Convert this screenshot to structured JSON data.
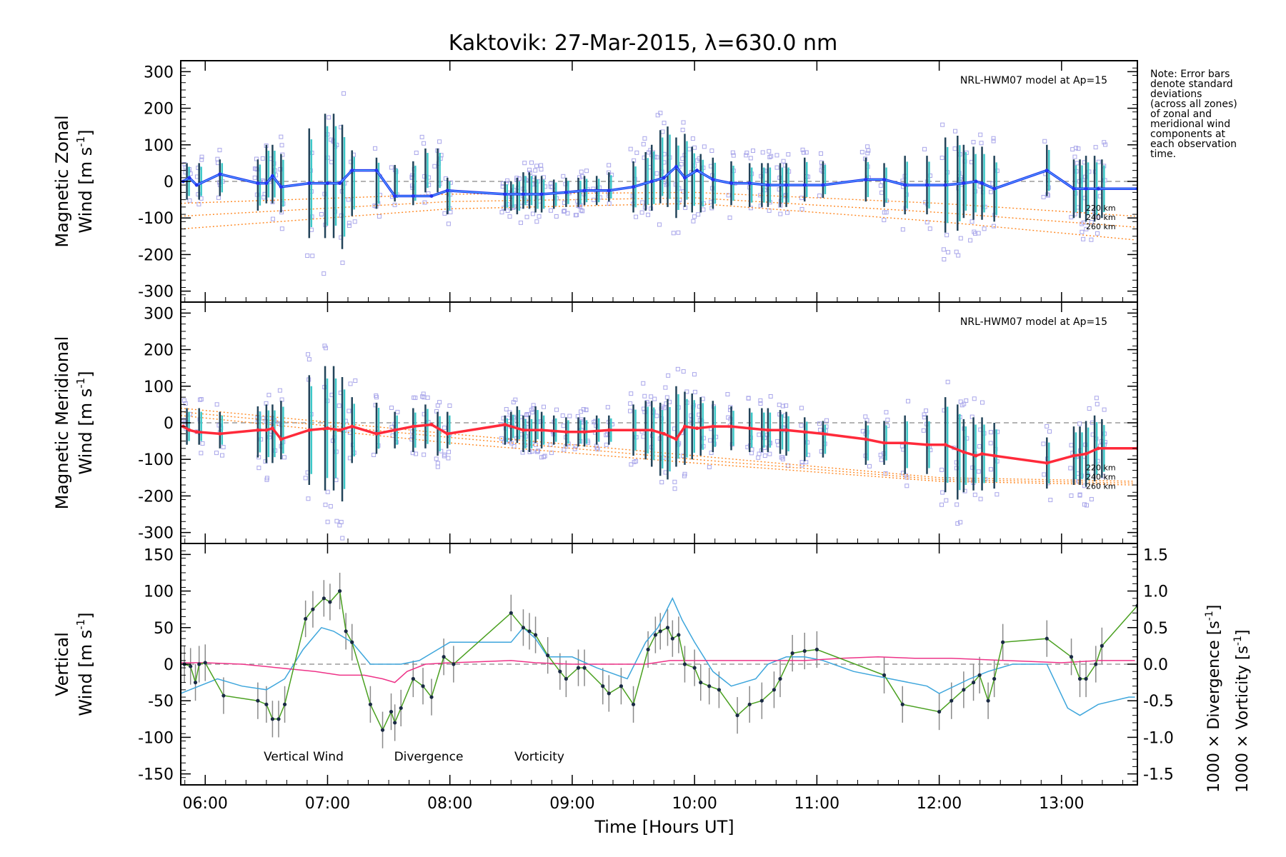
{
  "chart_data": {
    "type": "line",
    "title": "Kaktovik: 27-Mar-2015, λ=630.0 nm",
    "note_lines": [
      "Note: Error bars",
      "denote standard",
      "deviations",
      "(across all zones)",
      "of zonal and",
      "meridional wind",
      "components at",
      "each observation",
      "time."
    ],
    "xlabel": "Time [Hours UT]",
    "xlim": [
      5.8,
      13.62
    ],
    "xticks": [
      6,
      7,
      8,
      9,
      10,
      11,
      12,
      13
    ],
    "xtick_labels": [
      "06:00",
      "07:00",
      "08:00",
      "09:00",
      "10:00",
      "11:00",
      "12:00",
      "13:00"
    ],
    "colors": {
      "zonal": "#2233ee",
      "zonal_light": "#55aaff",
      "meridional": "#ff2a3a",
      "vertical": "#4aa020",
      "divergence": "#3ea6dc",
      "vorticity": "#ee3388",
      "model": "#ff8822",
      "scatter": "#a9a6ea",
      "errorbar": "#23445a",
      "vert_err": "#8a8a8a"
    },
    "panels": [
      {
        "name": "zonal",
        "ylabel_line1": "Magnetic Zonal",
        "ylabel_line2": "Wind [m s",
        "ylabel_sup": "-1",
        "ylabel_end": "]",
        "ylim": [
          -330,
          330
        ],
        "yticks": [
          -300,
          -200,
          -100,
          0,
          100,
          200,
          300
        ],
        "ytick_labels": [
          "-300",
          "-200",
          "-100",
          "0",
          "100",
          "200",
          "300"
        ],
        "model_label": "NRL-HWM07 model at Ap=15",
        "model_alt_labels": [
          "220 km",
          "240 km",
          "260 km"
        ],
        "model_lines": [
          {
            "x": [
              5.8,
              8.0,
              10.0,
              12.0,
              13.6
            ],
            "y": [
              -60,
              -35,
              -30,
              -60,
              -95
            ]
          },
          {
            "x": [
              5.8,
              8.0,
              10.0,
              12.0,
              13.6
            ],
            "y": [
              -95,
              -55,
              -45,
              -85,
              -125
            ]
          },
          {
            "x": [
              5.8,
              8.0,
              10.0,
              12.0,
              13.6
            ],
            "y": [
              -130,
              -75,
              -60,
              -110,
              -160
            ]
          }
        ],
        "series": {
          "x": [
            5.82,
            5.87,
            5.93,
            6.12,
            6.43,
            6.5,
            6.55,
            6.62,
            6.85,
            7.0,
            7.1,
            7.2,
            7.4,
            7.55,
            7.7,
            7.85,
            7.98,
            8.45,
            8.6,
            8.75,
            8.95,
            9.1,
            9.3,
            9.5,
            9.65,
            9.75,
            9.85,
            9.92,
            10.02,
            10.15,
            10.3,
            10.45,
            10.6,
            10.75,
            10.9,
            11.05,
            11.4,
            11.55,
            11.72,
            11.9,
            12.05,
            12.2,
            12.3,
            12.35,
            12.45,
            12.88,
            13.1,
            13.2,
            13.3,
            13.62
          ],
          "y": [
            0,
            10,
            -10,
            20,
            -5,
            -5,
            15,
            -15,
            -5,
            -5,
            -5,
            30,
            30,
            -40,
            -40,
            -40,
            -25,
            -35,
            -35,
            -35,
            -30,
            -25,
            -25,
            -15,
            0,
            10,
            40,
            10,
            30,
            5,
            -5,
            -5,
            -10,
            -10,
            -10,
            -10,
            5,
            5,
            -10,
            -10,
            -10,
            -5,
            0,
            -5,
            -20,
            30,
            -20,
            -20,
            -20,
            -20
          ]
        },
        "errbar_x": [
          5.85,
          5.95,
          6.12,
          6.43,
          6.5,
          6.55,
          6.62,
          6.85,
          6.98,
          7.05,
          7.12,
          7.2,
          7.4,
          7.55,
          7.7,
          7.8,
          7.9,
          7.98,
          8.45,
          8.5,
          8.55,
          8.6,
          8.65,
          8.7,
          8.75,
          8.85,
          8.95,
          9.05,
          9.1,
          9.2,
          9.3,
          9.5,
          9.6,
          9.65,
          9.72,
          9.78,
          9.85,
          9.92,
          9.98,
          10.05,
          10.15,
          10.3,
          10.45,
          10.55,
          10.6,
          10.7,
          10.75,
          10.9,
          11.05,
          11.4,
          11.55,
          11.72,
          11.9,
          12.05,
          12.15,
          12.2,
          12.28,
          12.35,
          12.45,
          12.88,
          13.1,
          13.15,
          13.2,
          13.27,
          13.33
        ],
        "errbar_half": [
          50,
          50,
          50,
          70,
          80,
          80,
          80,
          150,
          170,
          170,
          170,
          90,
          70,
          50,
          60,
          60,
          60,
          50,
          40,
          40,
          50,
          50,
          50,
          50,
          50,
          40,
          40,
          40,
          40,
          40,
          40,
          70,
          80,
          90,
          100,
          110,
          110,
          100,
          90,
          80,
          70,
          60,
          60,
          60,
          60,
          60,
          60,
          60,
          50,
          60,
          60,
          80,
          80,
          130,
          130,
          100,
          100,
          100,
          90,
          70,
          80,
          80,
          90,
          90,
          80
        ]
      },
      {
        "name": "meridional",
        "ylabel_line1": "Magnetic Meridional",
        "ylabel_line2": "Wind [m s",
        "ylabel_sup": "-1",
        "ylabel_end": "]",
        "ylim": [
          -330,
          330
        ],
        "yticks": [
          -300,
          -200,
          -100,
          0,
          100,
          200,
          300
        ],
        "ytick_labels": [
          "-300",
          "-200",
          "-100",
          "0",
          "100",
          "200",
          "300"
        ],
        "model_label": "NRL-HWM07 model at Ap=15",
        "model_alt_labels": [
          "220 km",
          "240 km",
          "260 km"
        ],
        "model_lines": [
          {
            "x": [
              5.8,
              8.0,
              10.0,
              12.0,
              13.6
            ],
            "y": [
              40,
              -30,
              -90,
              -150,
              -160
            ]
          },
          {
            "x": [
              5.8,
              8.0,
              10.0,
              12.0,
              13.6
            ],
            "y": [
              30,
              -40,
              -100,
              -155,
              -165
            ]
          },
          {
            "x": [
              5.8,
              8.0,
              10.0,
              12.0,
              13.6
            ],
            "y": [
              20,
              -55,
              -110,
              -160,
              -170
            ]
          }
        ],
        "series": {
          "x": [
            5.82,
            5.87,
            5.93,
            6.12,
            6.43,
            6.5,
            6.55,
            6.62,
            6.85,
            7.0,
            7.1,
            7.2,
            7.4,
            7.55,
            7.7,
            7.85,
            7.98,
            8.45,
            8.6,
            8.75,
            8.95,
            9.1,
            9.3,
            9.5,
            9.65,
            9.75,
            9.85,
            9.92,
            10.02,
            10.15,
            10.3,
            10.45,
            10.6,
            10.75,
            10.9,
            11.05,
            11.4,
            11.55,
            11.72,
            11.9,
            12.05,
            12.2,
            12.3,
            12.35,
            12.45,
            12.88,
            13.1,
            13.2,
            13.3,
            13.62
          ],
          "y": [
            -10,
            -20,
            -25,
            -30,
            -20,
            -20,
            -15,
            -45,
            -20,
            -15,
            -20,
            -10,
            -30,
            -20,
            -10,
            -5,
            -30,
            -5,
            -20,
            -20,
            -25,
            -25,
            -20,
            -20,
            -20,
            -30,
            -45,
            -10,
            -15,
            -10,
            -10,
            -15,
            -20,
            -20,
            -25,
            -30,
            -45,
            -55,
            -55,
            -60,
            -60,
            -80,
            -90,
            -85,
            -90,
            -110,
            -90,
            -85,
            -70,
            -70
          ]
        },
        "errbar_x": [
          5.85,
          5.95,
          6.12,
          6.43,
          6.5,
          6.55,
          6.62,
          6.85,
          6.98,
          7.05,
          7.12,
          7.2,
          7.4,
          7.55,
          7.7,
          7.8,
          7.9,
          7.98,
          8.45,
          8.5,
          8.55,
          8.6,
          8.65,
          8.7,
          8.75,
          8.85,
          8.95,
          9.05,
          9.1,
          9.2,
          9.3,
          9.5,
          9.6,
          9.65,
          9.72,
          9.78,
          9.85,
          9.92,
          9.98,
          10.05,
          10.15,
          10.3,
          10.45,
          10.55,
          10.6,
          10.7,
          10.75,
          10.9,
          11.05,
          11.4,
          11.55,
          11.72,
          11.9,
          12.05,
          12.15,
          12.2,
          12.28,
          12.35,
          12.45,
          12.88,
          13.1,
          13.15,
          13.2,
          13.27,
          13.33
        ],
        "errbar_half": [
          50,
          50,
          50,
          70,
          80,
          80,
          80,
          150,
          170,
          170,
          170,
          90,
          70,
          50,
          60,
          60,
          60,
          50,
          40,
          40,
          50,
          50,
          50,
          50,
          50,
          40,
          40,
          40,
          40,
          40,
          40,
          70,
          80,
          90,
          100,
          110,
          110,
          100,
          90,
          80,
          70,
          60,
          60,
          60,
          60,
          60,
          60,
          60,
          50,
          60,
          60,
          80,
          80,
          130,
          130,
          100,
          100,
          100,
          90,
          70,
          80,
          80,
          90,
          90,
          80
        ]
      },
      {
        "name": "vertical",
        "ylabel_line1": "Vertical",
        "ylabel_line2": "Wind [m s",
        "ylabel_sup": "-1",
        "ylabel_end": "]",
        "ylim": [
          -165,
          165
        ],
        "yticks": [
          -150,
          -100,
          -50,
          0,
          50,
          100,
          150
        ],
        "ytick_labels": [
          "-150",
          "-100",
          "-50",
          "0",
          "50",
          "100",
          "150"
        ],
        "right_axis": {
          "ylim": [
            -1.65,
            1.65
          ],
          "yticks": [
            -1.5,
            -1.0,
            -0.5,
            0.0,
            0.5,
            1.0,
            1.5
          ],
          "ytick_labels": [
            "-1.5",
            "-1.0",
            "-0.5",
            "0.0",
            "0.5",
            "1.0",
            "1.5"
          ],
          "label_div": "1000 × Divergence [s",
          "label_vort": "1000 × Vorticity [s",
          "label_sup": "-1",
          "label_end": "]"
        },
        "legend": [
          "Vertical Wind",
          "Divergence",
          "Vorticity"
        ],
        "vertical_wind": {
          "x": [
            5.83,
            5.88,
            5.92,
            5.95,
            6.0,
            6.15,
            6.43,
            6.5,
            6.55,
            6.6,
            6.65,
            6.82,
            6.88,
            6.97,
            7.02,
            7.1,
            7.15,
            7.2,
            7.35,
            7.45,
            7.52,
            7.55,
            7.6,
            7.7,
            7.78,
            7.85,
            7.95,
            8.03,
            8.5,
            8.6,
            8.65,
            8.7,
            8.8,
            8.9,
            8.95,
            9.05,
            9.1,
            9.25,
            9.3,
            9.4,
            9.5,
            9.62,
            9.68,
            9.72,
            9.78,
            9.82,
            9.87,
            9.92,
            10.0,
            10.05,
            10.12,
            10.2,
            10.35,
            10.45,
            10.55,
            10.65,
            10.7,
            10.8,
            10.9,
            11.0,
            11.55,
            11.7,
            12.0,
            12.1,
            12.2,
            12.28,
            12.33,
            12.4,
            12.45,
            12.52,
            12.88,
            13.08,
            13.15,
            13.2,
            13.28,
            13.33,
            13.62
          ],
          "y": [
            0,
            -3,
            -25,
            0,
            2,
            -43,
            -50,
            -55,
            -75,
            -75,
            -55,
            62,
            75,
            90,
            85,
            100,
            45,
            30,
            -55,
            -90,
            -65,
            -80,
            -60,
            -20,
            -30,
            -45,
            10,
            0,
            70,
            50,
            45,
            40,
            12,
            -10,
            -20,
            -5,
            -5,
            -30,
            -40,
            -30,
            -55,
            20,
            40,
            45,
            50,
            35,
            40,
            0,
            -5,
            -25,
            -30,
            -35,
            -70,
            -55,
            -50,
            -35,
            -20,
            15,
            18,
            20,
            -15,
            -55,
            -65,
            -50,
            -35,
            -25,
            -15,
            -50,
            -20,
            30,
            35,
            10,
            -20,
            -20,
            0,
            25,
            80
          ]
        },
        "vertical_err_half": 25,
        "divergence": {
          "x": [
            5.8,
            5.95,
            6.1,
            6.3,
            6.5,
            6.65,
            6.8,
            6.95,
            7.05,
            7.2,
            7.35,
            7.5,
            7.6,
            7.75,
            7.9,
            8.0,
            8.2,
            8.5,
            8.6,
            8.7,
            8.8,
            9.0,
            9.2,
            9.45,
            9.6,
            9.7,
            9.82,
            9.9,
            10.0,
            10.15,
            10.3,
            10.5,
            10.6,
            10.75,
            10.9,
            11.05,
            11.3,
            11.6,
            11.9,
            12.0,
            12.25,
            12.4,
            12.6,
            12.88,
            13.05,
            13.15,
            13.3,
            13.55,
            13.6
          ],
          "y": [
            -0.4,
            -0.3,
            -0.2,
            -0.3,
            -0.35,
            -0.2,
            0.2,
            0.5,
            0.45,
            0.3,
            0.0,
            0.0,
            0.0,
            0.05,
            0.2,
            0.3,
            0.3,
            0.3,
            0.5,
            0.35,
            0.1,
            0.1,
            -0.05,
            -0.2,
            0.3,
            0.5,
            0.9,
            0.6,
            0.3,
            -0.1,
            -0.3,
            -0.2,
            0.0,
            0.1,
            0.1,
            0.05,
            -0.1,
            -0.2,
            -0.3,
            -0.4,
            -0.2,
            -0.1,
            0.0,
            0.0,
            -0.6,
            -0.7,
            -0.55,
            -0.45,
            -0.45
          ]
        },
        "vorticity": {
          "x": [
            5.8,
            6.0,
            6.3,
            6.6,
            6.9,
            7.1,
            7.3,
            7.45,
            7.55,
            7.65,
            7.8,
            8.0,
            8.2,
            8.5,
            8.7,
            9.0,
            9.3,
            9.6,
            9.8,
            10.0,
            10.3,
            10.6,
            10.9,
            11.2,
            11.5,
            11.8,
            12.1,
            12.4,
            12.7,
            13.0,
            13.3,
            13.6
          ],
          "y": [
            0.02,
            0.02,
            0.0,
            -0.05,
            -0.1,
            -0.15,
            -0.15,
            -0.2,
            -0.25,
            -0.1,
            0.0,
            0.02,
            0.03,
            0.05,
            0.02,
            0.0,
            0.0,
            0.0,
            0.05,
            0.05,
            0.05,
            0.05,
            0.05,
            0.08,
            0.1,
            0.08,
            0.08,
            0.06,
            0.04,
            0.02,
            0.05,
            0.05
          ]
        }
      }
    ]
  }
}
